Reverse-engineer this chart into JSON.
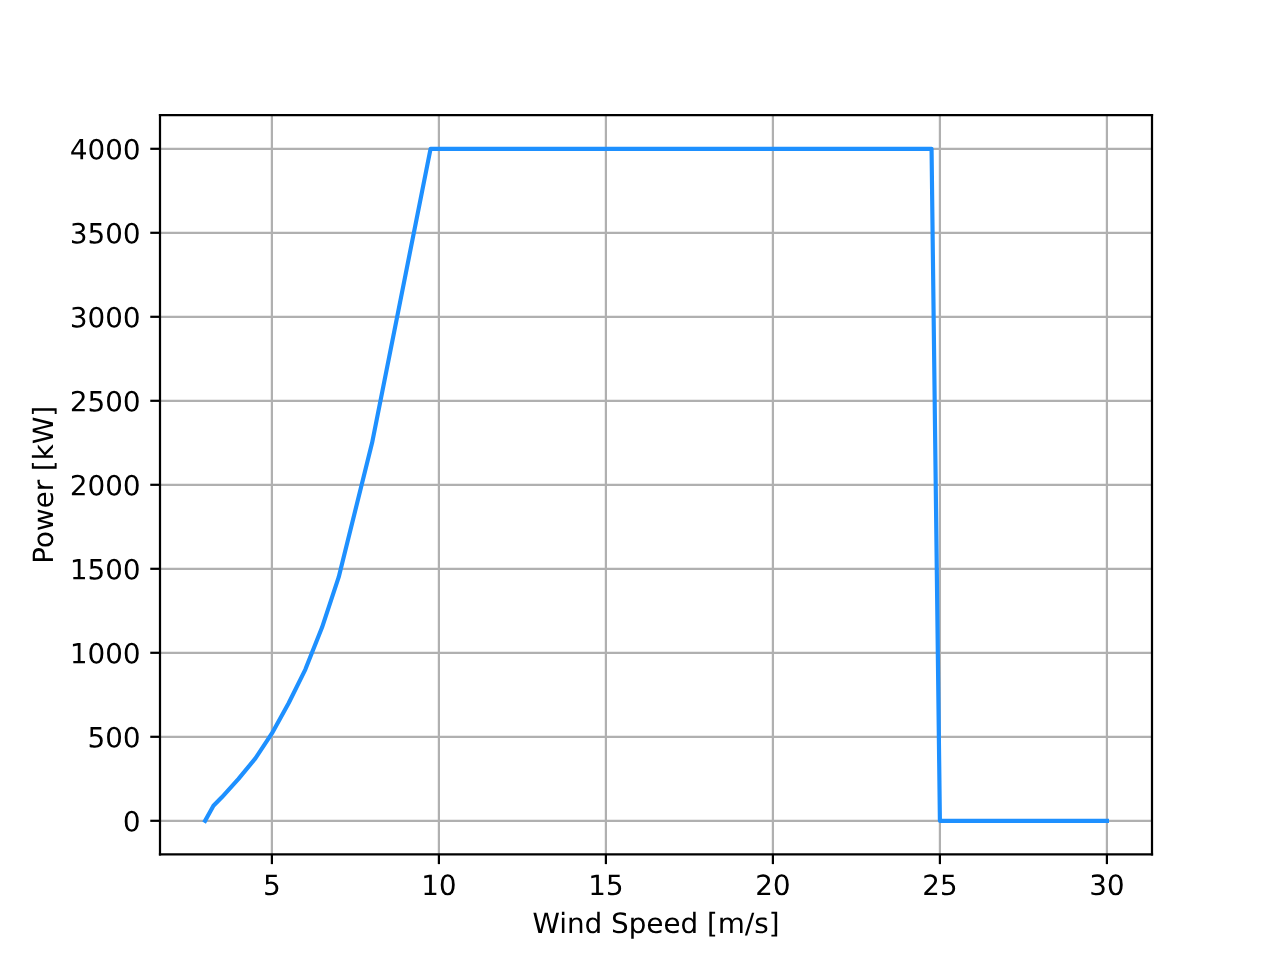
{
  "chart_data": {
    "type": "line",
    "xlabel": "Wind Speed [m/s]",
    "ylabel": "Power [kW]",
    "series": [
      {
        "color": "#1e90ff",
        "x": [
          3,
          3.25,
          3.5,
          4,
          4.5,
          5,
          5.5,
          6,
          6.5,
          7,
          7.5,
          8,
          8.5,
          9,
          9.5,
          9.75,
          24.75,
          25,
          30
        ],
        "values": [
          0,
          90,
          140,
          250,
          370,
          520,
          700,
          900,
          1150,
          1450,
          1850,
          2250,
          2750,
          3250,
          3750,
          4000,
          4000,
          0,
          0
        ]
      }
    ],
    "xlim": [
      1.65,
      31.35
    ],
    "ylim": [
      -200,
      4200
    ],
    "xticks": [
      5,
      10,
      15,
      20,
      25,
      30
    ],
    "yticks": [
      0,
      500,
      1000,
      1500,
      2000,
      2500,
      3000,
      3500,
      4000
    ],
    "grid": true,
    "marker": "none",
    "line_style": "solid"
  }
}
